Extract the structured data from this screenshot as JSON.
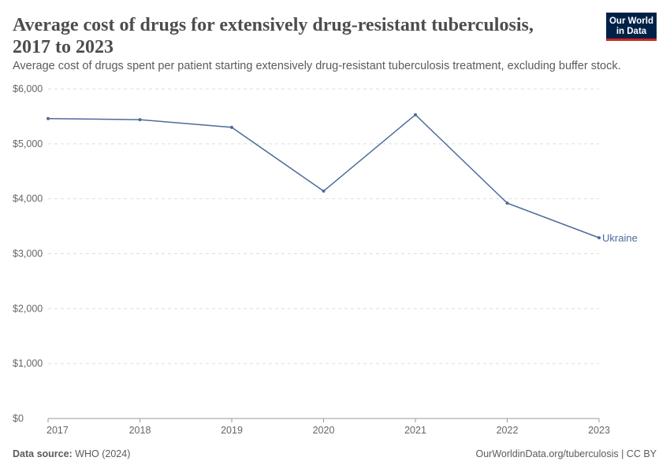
{
  "chart_data": {
    "type": "line",
    "title_lines": [
      "Average cost of drugs for extensively drug-resistant tuberculosis,",
      "2017 to 2023"
    ],
    "subtitle": "Average cost of drugs spent per patient starting extensively drug-resistant tuberculosis treatment, excluding buffer stock.",
    "x": [
      2017,
      2018,
      2019,
      2020,
      2021,
      2022,
      2023
    ],
    "series": [
      {
        "name": "Ukraine",
        "color": "#4c6a9c",
        "values": [
          5460,
          5440,
          5300,
          4140,
          5530,
          3920,
          3290
        ]
      }
    ],
    "xlim": [
      2017,
      2023
    ],
    "xticks": [
      2017,
      2018,
      2019,
      2020,
      2021,
      2022,
      2023
    ],
    "ylim": [
      0,
      6000
    ],
    "yticks": [
      {
        "value": 0,
        "label": "$0"
      },
      {
        "value": 1000,
        "label": "$1,000"
      },
      {
        "value": 2000,
        "label": "$2,000"
      },
      {
        "value": 3000,
        "label": "$3,000"
      },
      {
        "value": 4000,
        "label": "$4,000"
      },
      {
        "value": 5000,
        "label": "$5,000"
      },
      {
        "value": 6000,
        "label": "$6,000"
      }
    ],
    "grid": true,
    "source_label": "Data source:",
    "source": "WHO (2024)",
    "credit": "OurWorldinData.org/tuberculosis | CC BY",
    "logo_lines": [
      "Our World",
      "in Data"
    ]
  }
}
